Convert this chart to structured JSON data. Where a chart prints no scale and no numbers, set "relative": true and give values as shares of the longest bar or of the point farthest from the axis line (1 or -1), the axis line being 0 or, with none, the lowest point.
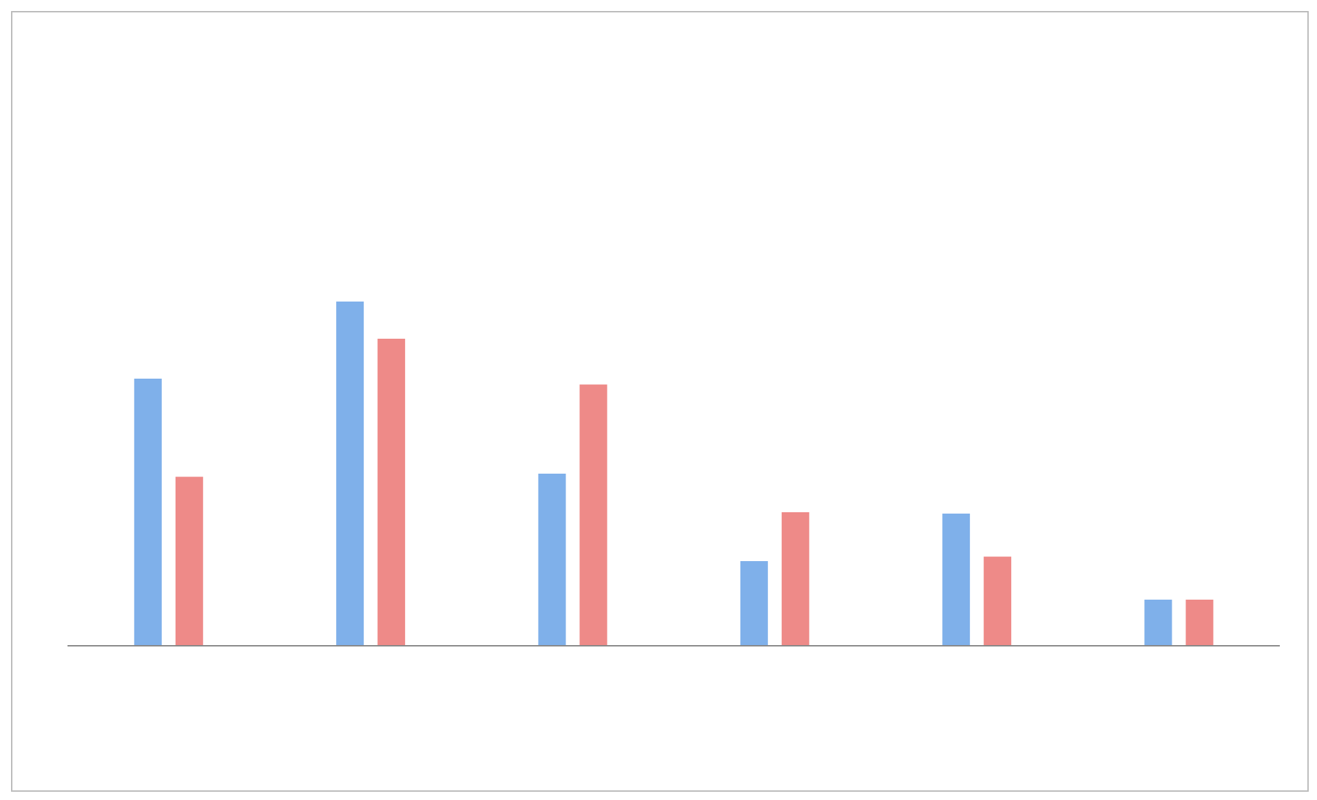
{
  "chart_data": {
    "type": "bar",
    "relative": true,
    "categories": [
      null,
      null,
      null,
      null,
      null,
      null
    ],
    "series": [
      {
        "color": "#7fb0ea",
        "values": [
          0.776,
          1,
          0.5,
          0.246,
          0.384,
          0.134
        ]
      },
      {
        "color": "#ee8a88",
        "values": [
          0.491,
          0.892,
          0.759,
          0.388,
          0.259,
          0.134
        ]
      }
    ]
  }
}
